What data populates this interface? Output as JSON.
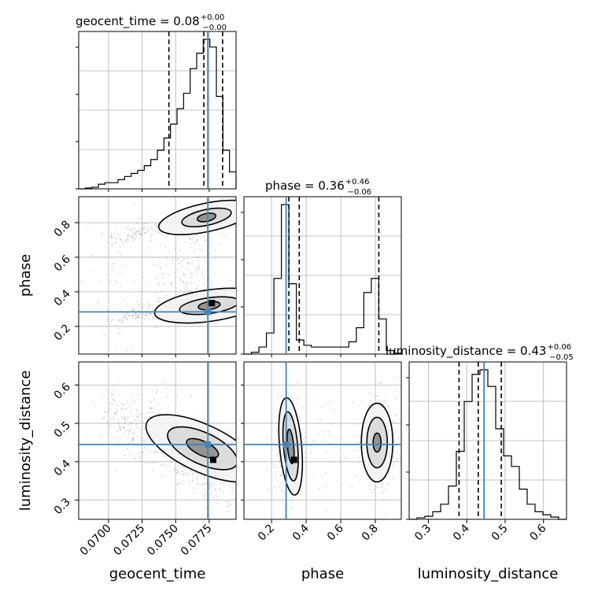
{
  "chart_data": {
    "type": "corner",
    "parameters": [
      "geocent_time",
      "phase",
      "luminosity_distance"
    ],
    "truth": {
      "geocent_time": 0.0774,
      "phase": 0.284,
      "luminosity_distance": 0.445
    },
    "colors": {
      "truth": "#4682b4",
      "hist": "#000000",
      "quantile": "#000000",
      "points": "#8a8a8a"
    },
    "titles": [
      {
        "param": "geocent_time",
        "label": "geocent_time = 0.08",
        "plus": "+0.00",
        "minus": "−0.00"
      },
      {
        "param": "phase",
        "label": "phase = 0.36",
        "plus": "+0.46",
        "minus": "−0.06"
      },
      {
        "param": "luminosity_distance",
        "label": "luminosity_distance = 0.43",
        "plus": "+0.06",
        "minus": "−0.05"
      }
    ],
    "axes": {
      "geocent_time": {
        "range": [
          0.06778,
          0.0795
        ],
        "ticks": [
          0.07,
          0.0725,
          0.075,
          0.0775
        ],
        "tick_labels": [
          "0.0700",
          "0.0725",
          "0.0750",
          "0.0775"
        ]
      },
      "phase": {
        "range": [
          0.04,
          0.95
        ],
        "ticks": [
          0.2,
          0.4,
          0.6,
          0.8
        ],
        "tick_labels": [
          "0.2",
          "0.4",
          "0.6",
          "0.8"
        ]
      },
      "luminosity_distance": {
        "range": [
          0.25,
          0.66
        ],
        "ticks": [
          0.3,
          0.4,
          0.5,
          0.6
        ],
        "tick_labels": [
          "0.3",
          "0.4",
          "0.5",
          "0.6"
        ]
      }
    },
    "quantiles": {
      "geocent_time": [
        0.0745,
        0.0771,
        0.0785
      ],
      "phase": [
        0.3,
        0.36,
        0.82
      ],
      "luminosity_distance": [
        0.38,
        0.43,
        0.49
      ]
    },
    "histograms": {
      "geocent_time": {
        "edges_from": 0.06778,
        "edges_to": 0.0795,
        "counts": [
          0,
          0.005,
          0.01,
          0.03,
          0.04,
          0.04,
          0.06,
          0.08,
          0.1,
          0.12,
          0.15,
          0.19,
          0.25,
          0.33,
          0.42,
          0.52,
          0.62,
          0.78,
          0.88,
          0.97,
          0.92,
          0.6,
          0.25,
          0.11
        ]
      },
      "phase": {
        "edges_from": 0.04,
        "edges_to": 0.95,
        "counts": [
          0,
          0.01,
          0.04,
          0.12,
          0.43,
          0.85,
          0.4,
          0.08,
          0.05,
          0.04,
          0.04,
          0.04,
          0.04,
          0.04,
          0.07,
          0.15,
          0.35,
          0.43,
          0.2,
          0.02,
          0.005
        ]
      },
      "luminosity_distance": {
        "edges_from": 0.25,
        "edges_to": 0.66,
        "counts": [
          0,
          0.01,
          0.02,
          0.05,
          0.1,
          0.22,
          0.45,
          0.78,
          0.96,
          0.99,
          0.88,
          0.6,
          0.42,
          0.35,
          0.2,
          0.1,
          0.05,
          0.03,
          0.015,
          0
        ]
      }
    }
  }
}
